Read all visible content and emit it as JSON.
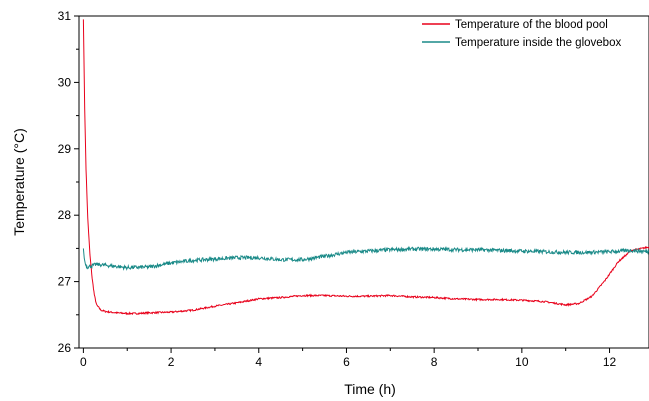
{
  "chart_data": {
    "type": "line",
    "xlabel": "Time (h)",
    "ylabel": "Temperature (°C)",
    "xlim": [
      -0.1,
      12.9
    ],
    "ylim": [
      26,
      31
    ],
    "x_ticks": [
      0,
      2,
      4,
      6,
      8,
      10,
      12
    ],
    "y_ticks": [
      26,
      27,
      28,
      29,
      30,
      31
    ],
    "legend_position": "top-right",
    "grid": false,
    "series": [
      {
        "name": "Temperature of the blood pool",
        "color": "#e8001a",
        "x": [
          0,
          0.03,
          0.06,
          0.1,
          0.15,
          0.2,
          0.25,
          0.3,
          0.4,
          0.5,
          0.75,
          1.0,
          1.25,
          1.5,
          2.0,
          2.5,
          3.0,
          3.5,
          4.0,
          4.5,
          5.0,
          5.5,
          6.0,
          6.5,
          7.0,
          7.5,
          8.0,
          8.5,
          9.0,
          9.5,
          10.0,
          10.5,
          11.0,
          11.3,
          11.6,
          11.9,
          12.2,
          12.5,
          12.9
        ],
        "y": [
          30.95,
          29.6,
          28.7,
          27.95,
          27.4,
          27.05,
          26.8,
          26.65,
          26.57,
          26.55,
          26.53,
          26.52,
          26.52,
          26.53,
          26.54,
          26.57,
          26.63,
          26.68,
          26.74,
          26.76,
          26.79,
          26.79,
          26.78,
          26.78,
          26.79,
          26.77,
          26.76,
          26.74,
          26.73,
          26.73,
          26.72,
          26.7,
          26.65,
          26.67,
          26.78,
          27.02,
          27.3,
          27.47,
          27.52
        ]
      },
      {
        "name": "Temperature inside the glovebox",
        "color": "#1a8a88",
        "x": [
          0,
          0.02,
          0.05,
          0.1,
          0.3,
          0.6,
          1.0,
          1.5,
          2.0,
          2.5,
          3.0,
          3.5,
          4.0,
          4.5,
          5.0,
          5.5,
          6.0,
          6.5,
          7.0,
          7.5,
          8.0,
          8.5,
          9.0,
          9.5,
          10.0,
          10.5,
          11.0,
          11.5,
          12.0,
          12.5,
          12.9
        ],
        "y": [
          27.5,
          27.35,
          27.25,
          27.22,
          27.26,
          27.24,
          27.21,
          27.22,
          27.28,
          27.32,
          27.34,
          27.36,
          27.36,
          27.33,
          27.33,
          27.38,
          27.44,
          27.46,
          27.48,
          27.49,
          27.49,
          27.48,
          27.48,
          27.47,
          27.46,
          27.45,
          27.44,
          27.44,
          27.45,
          27.47,
          27.45
        ]
      }
    ]
  }
}
